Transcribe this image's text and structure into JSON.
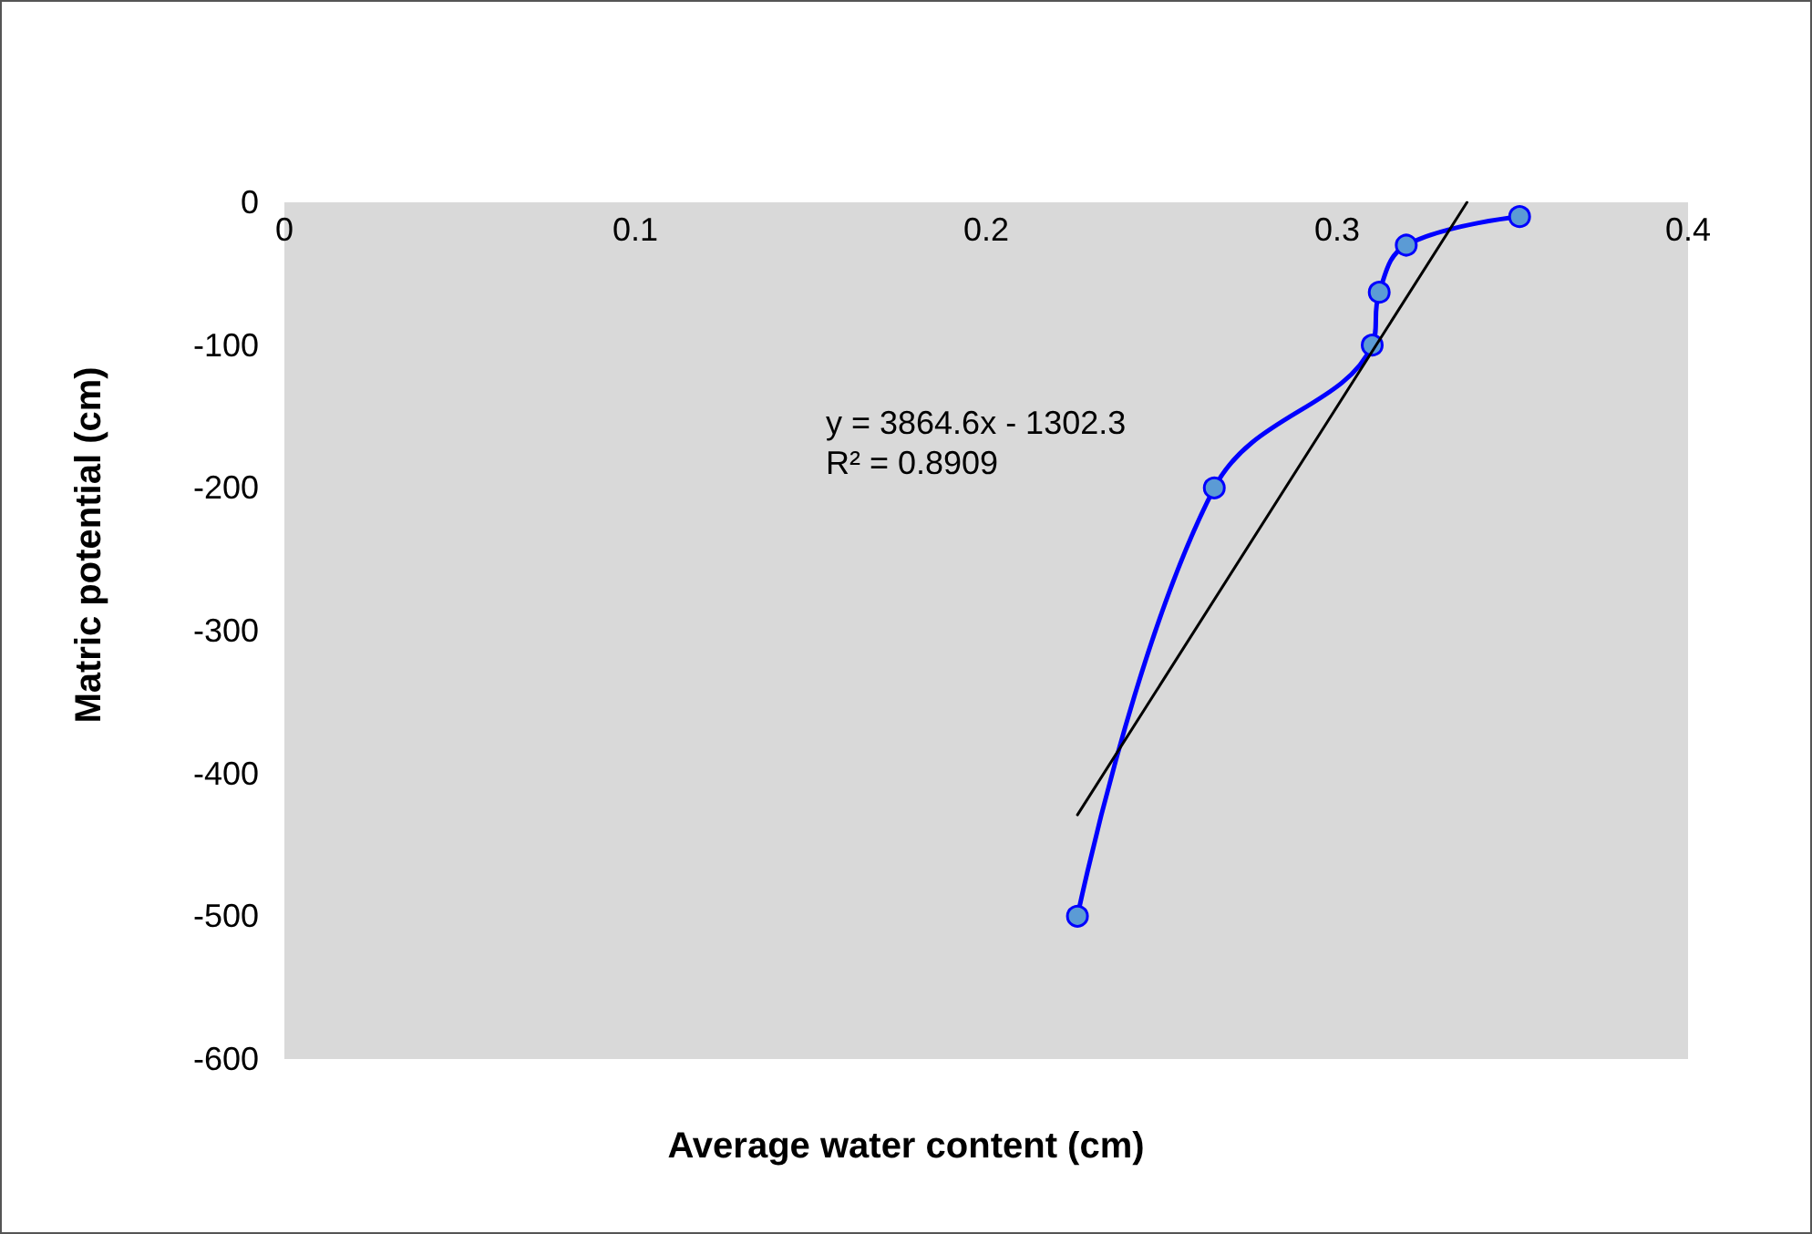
{
  "chart_data": {
    "type": "line",
    "xlabel": "Average water content (cm)",
    "ylabel": "Matric potential (cm)",
    "series": [
      {
        "color": "#0000ff",
        "x": [
          0.352,
          0.3197,
          0.312,
          0.31,
          0.265,
          0.226
        ],
        "values": [
          -10,
          -30,
          -63,
          -100,
          -200,
          -500
        ],
        "marker": "circle"
      },
      {
        "color": "#000000",
        "x": [
          0.226,
          0.337
        ],
        "values": [
          -429,
          0
        ],
        "marker": "none"
      }
    ],
    "xlim": [
      0,
      0.4
    ],
    "xticks": [
      0,
      0.1,
      0.2,
      0.3,
      0.4
    ],
    "ylim": [
      -600,
      0
    ],
    "yticks": [
      -600,
      -500,
      -400,
      -300,
      -200,
      -100,
      0
    ],
    "grid": false,
    "annotations": [
      "y = 3864.6x - 1302.3",
      "R² = 0.8909"
    ]
  }
}
